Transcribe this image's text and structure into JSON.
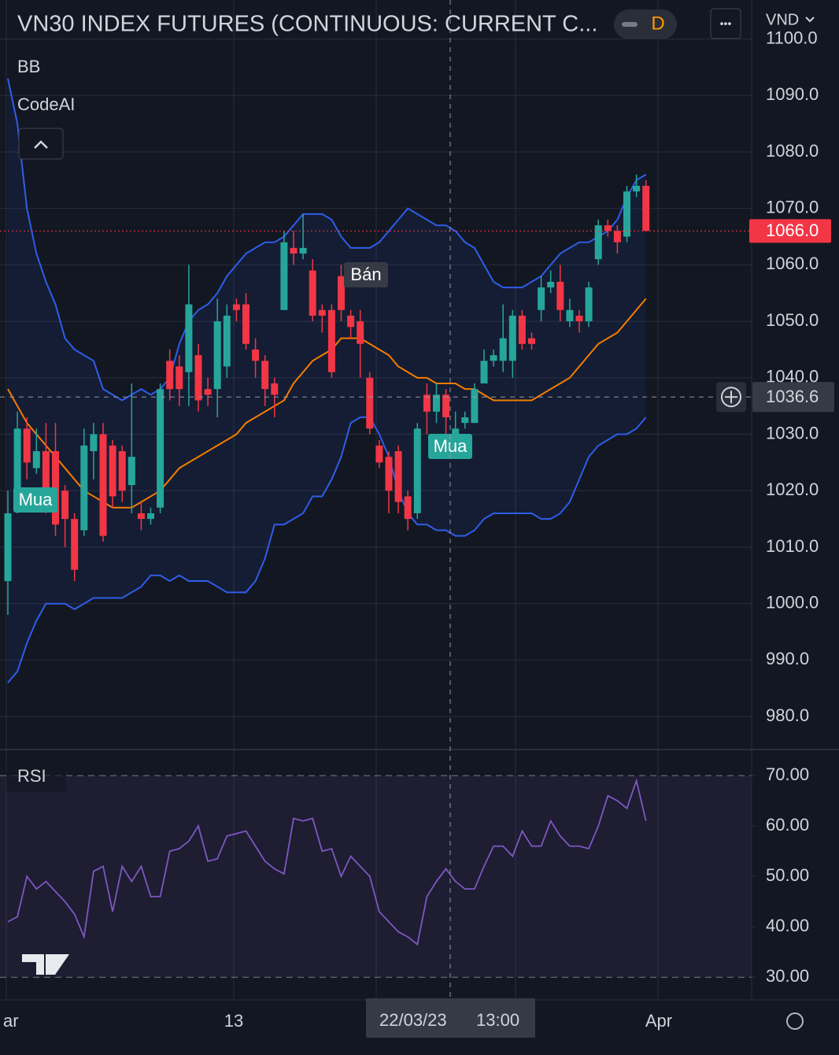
{
  "header": {
    "title": "VN30 INDEX FUTURES (CONTINUOUS: CURRENT C...",
    "interval": "D",
    "currency": "VND",
    "more": "•••"
  },
  "indicators": [
    "BB",
    "CodeAI"
  ],
  "signals": [
    "Mua",
    "Bán",
    "Mua"
  ],
  "x_labels": [
    "ar",
    "13",
    "Apr"
  ],
  "crosshair": {
    "price": 1036.6,
    "date": "22/03/23",
    "time": "13:00"
  },
  "chart_data": [
    {
      "type": "candlestick",
      "up_color": "#26a69a",
      "down_color": "#f23645",
      "ylim": [
        975,
        1103
      ],
      "yticks": [
        {
          "value": 980,
          "label": "980.0"
        },
        {
          "value": 990,
          "label": "990.0"
        },
        {
          "value": 1000,
          "label": "1000.0"
        },
        {
          "value": 1010,
          "label": "1010.0"
        },
        {
          "value": 1020,
          "label": "1020.0"
        },
        {
          "value": 1030,
          "label": "1030.0"
        },
        {
          "value": 1040,
          "label": "1040.0"
        },
        {
          "value": 1050,
          "label": "1050.0"
        },
        {
          "value": 1060,
          "label": "1060.0"
        },
        {
          "value": 1070,
          "label": "1070.0"
        },
        {
          "value": 1080,
          "label": "1080.0"
        },
        {
          "value": 1090,
          "label": "1090.0"
        },
        {
          "value": 1100,
          "label": "1100.0"
        }
      ],
      "last_price": {
        "value": 1066,
        "label": "1066.0"
      },
      "candles": [
        [
          1004,
          1020,
          998,
          1016
        ],
        [
          1020,
          1034,
          1016,
          1031
        ],
        [
          1031,
          1033,
          1022,
          1025
        ],
        [
          1024,
          1031,
          1023,
          1027
        ],
        [
          1027,
          1032,
          1016,
          1020
        ],
        [
          1027,
          1032,
          1012,
          1014
        ],
        [
          1020,
          1021,
          1010,
          1015
        ],
        [
          1015,
          1016,
          1004,
          1006
        ],
        [
          1013,
          1031,
          1012,
          1028
        ],
        [
          1027,
          1032,
          1022,
          1030
        ],
        [
          1030,
          1032,
          1011,
          1012
        ],
        [
          1028,
          1029,
          1017,
          1019
        ],
        [
          1027,
          1028,
          1018,
          1020
        ],
        [
          1021,
          1039,
          1016,
          1026
        ],
        [
          1016,
          1018,
          1013,
          1015
        ],
        [
          1015,
          1017,
          1014,
          1016
        ],
        [
          1017,
          1039,
          1016,
          1038
        ],
        [
          1043,
          1045,
          1036,
          1038
        ],
        [
          1042,
          1044,
          1035,
          1038
        ],
        [
          1041,
          1060,
          1035,
          1053
        ],
        [
          1044,
          1046,
          1034,
          1036
        ],
        [
          1038,
          1040,
          1035,
          1037
        ],
        [
          1038,
          1054,
          1033,
          1050
        ],
        [
          1042,
          1053,
          1040,
          1051
        ],
        [
          1053,
          1054,
          1050,
          1052
        ],
        [
          1053,
          1055,
          1045,
          1046
        ],
        [
          1045,
          1047,
          1040,
          1043
        ],
        [
          1043,
          1044,
          1035,
          1038
        ],
        [
          1039,
          1040,
          1033,
          1037
        ],
        [
          1052,
          1066,
          1052,
          1064
        ],
        [
          1063,
          1066,
          1060,
          1062
        ],
        [
          1062,
          1069,
          1061,
          1063
        ],
        [
          1059,
          1061,
          1050,
          1051
        ],
        [
          1052,
          1053,
          1048,
          1051
        ],
        [
          1052,
          1053,
          1040,
          1041
        ],
        [
          1058,
          1060,
          1050,
          1052
        ],
        [
          1051,
          1052,
          1047,
          1049
        ],
        [
          1050,
          1052,
          1040,
          1046
        ],
        [
          1040,
          1041,
          1030,
          1031
        ],
        [
          1028,
          1029,
          1024,
          1025
        ],
        [
          1026,
          1027,
          1016,
          1020
        ],
        [
          1027,
          1028,
          1016,
          1018
        ],
        [
          1019,
          1020,
          1013,
          1015
        ],
        [
          1016,
          1032,
          1015,
          1031
        ],
        [
          1037,
          1039,
          1030,
          1034
        ],
        [
          1034,
          1039,
          1032,
          1037
        ],
        [
          1037,
          1038,
          1030,
          1033
        ],
        [
          1028,
          1034,
          1027,
          1031
        ],
        [
          1032,
          1034,
          1031,
          1033
        ],
        [
          1032,
          1039,
          1032,
          1038
        ],
        [
          1039,
          1045,
          1039,
          1043
        ],
        [
          1043,
          1045,
          1042,
          1044
        ],
        [
          1043,
          1053,
          1041,
          1047
        ],
        [
          1043,
          1052,
          1040,
          1051
        ],
        [
          1051,
          1052,
          1045,
          1046
        ],
        [
          1047,
          1048,
          1045,
          1046
        ],
        [
          1052,
          1058,
          1050,
          1056
        ],
        [
          1056,
          1059,
          1055,
          1057
        ],
        [
          1057,
          1060,
          1050,
          1052
        ],
        [
          1050,
          1054,
          1049,
          1052
        ],
        [
          1051,
          1052,
          1048,
          1050
        ],
        [
          1050,
          1057,
          1049,
          1056
        ],
        [
          1061,
          1068,
          1060,
          1067
        ],
        [
          1067,
          1068,
          1065,
          1066
        ],
        [
          1066,
          1067,
          1062,
          1064
        ],
        [
          1065,
          1074,
          1064,
          1073
        ],
        [
          1073,
          1076,
          1072,
          1074
        ],
        [
          1074,
          1075,
          1066,
          1066
        ]
      ],
      "series": [
        {
          "name": "BB",
          "color": "#2f5de8",
          "values": [
            1093,
            1085,
            1070,
            1062,
            1057,
            1053,
            1047,
            1045,
            1044,
            1043,
            1038,
            1037,
            1036,
            1037,
            1038,
            1037,
            1038,
            1040,
            1046,
            1050,
            1052,
            1053,
            1055,
            1058,
            1060,
            1062,
            1063,
            1064,
            1064,
            1065,
            1067,
            1069,
            1069,
            1069,
            1068,
            1065,
            1063,
            1063,
            1063,
            1064,
            1066,
            1068,
            1070,
            1069,
            1068,
            1067,
            1067,
            1066,
            1064,
            1063,
            1060,
            1057,
            1056,
            1056,
            1056,
            1057,
            1058,
            1060,
            1062,
            1063,
            1064,
            1064,
            1065,
            1066,
            1068,
            1072,
            1075,
            1076
          ]
        },
        {
          "name": "BB",
          "color": "#f57c00",
          "values": [
            1038,
            1035,
            1032,
            1030,
            1028,
            1026,
            1024,
            1022,
            1020,
            1019,
            1018,
            1017,
            1017,
            1017,
            1018,
            1019,
            1020,
            1022,
            1024,
            1025,
            1026,
            1027,
            1028,
            1029,
            1030,
            1032,
            1033,
            1034,
            1035,
            1036,
            1039,
            1041,
            1043,
            1044,
            1045,
            1047,
            1047,
            1047,
            1046,
            1045,
            1044,
            1042,
            1041,
            1040,
            1040,
            1039,
            1039,
            1039,
            1038,
            1038,
            1037,
            1036,
            1036,
            1036,
            1036,
            1036,
            1037,
            1038,
            1039,
            1040,
            1042,
            1044,
            1046,
            1047,
            1048,
            1050,
            1052,
            1054
          ]
        },
        {
          "name": "BB",
          "color": "#2f5de8",
          "values": [
            986,
            988,
            993,
            997,
            1000,
            1000,
            1000,
            999,
            1000,
            1001,
            1001,
            1001,
            1001,
            1002,
            1003,
            1005,
            1005,
            1004,
            1005,
            1004,
            1004,
            1004,
            1003,
            1002,
            1002,
            1002,
            1004,
            1008,
            1014,
            1014,
            1015,
            1016,
            1019,
            1019,
            1022,
            1026,
            1032,
            1033,
            1033,
            1030,
            1026,
            1020,
            1016,
            1014,
            1014,
            1013,
            1013,
            1012,
            1012,
            1013,
            1015,
            1016,
            1016,
            1016,
            1016,
            1016,
            1015,
            1015,
            1016,
            1018,
            1022,
            1026,
            1028,
            1029,
            1030,
            1030,
            1031,
            1033
          ]
        }
      ]
    },
    {
      "type": "line",
      "title": "RSI",
      "ylim": [
        25.5,
        74.7
      ],
      "yticks": [
        {
          "value": 30,
          "label": "30.00"
        },
        {
          "value": 40,
          "label": "40.00"
        },
        {
          "value": 50,
          "label": "50.00"
        },
        {
          "value": 60,
          "label": "60.00"
        },
        {
          "value": 70,
          "label": "70.00"
        }
      ],
      "upper_band": 70,
      "lower_band": 30,
      "series": [
        {
          "name": "RSI",
          "color": "#7e57c2",
          "values": [
            41,
            42,
            50,
            47.5,
            49,
            47,
            45,
            42.5,
            38,
            51,
            52,
            43,
            52,
            49,
            52,
            46,
            46,
            55,
            55.5,
            57,
            60,
            53,
            53.5,
            58,
            58.5,
            59,
            56,
            53,
            51.5,
            50.5,
            61.5,
            61,
            61.5,
            55,
            55.5,
            50,
            54,
            52,
            50,
            43,
            41,
            39,
            38,
            36.5,
            46,
            49,
            51.5,
            49,
            47.5,
            47.5,
            52,
            56,
            56,
            54,
            59,
            56,
            56,
            61,
            58,
            56,
            56,
            55.5,
            60,
            66,
            65,
            63.5,
            69,
            61
          ]
        }
      ]
    }
  ]
}
